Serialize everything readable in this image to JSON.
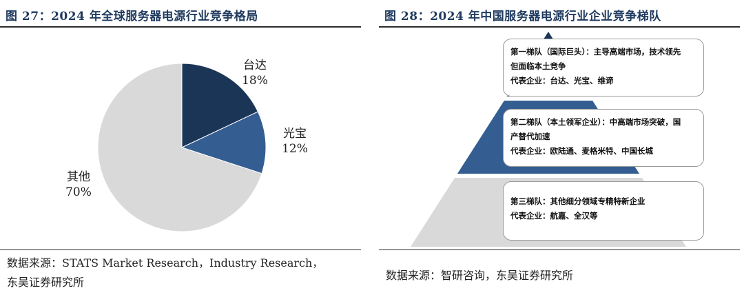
{
  "left": {
    "title": "图 27：2024 年全球服务器电源行业竞争格局",
    "source_lines": [
      "数据来源：STATS Market Research，Industry Research，",
      "东吴证券研究所"
    ]
  },
  "right": {
    "title": "图 28：2024 年中国服务器电源行业企业竞争梯队",
    "source": "数据来源：智研咨询，东吴证券研究所",
    "tiers": [
      {
        "line1": "第一梯队（国际巨头）：主导高端市场，技术领先",
        "line2": "但面临本土竞争",
        "line3": "代表企业：台达、光宝、维谛"
      },
      {
        "line1": "第二梯队（本土领军企业）：中高端市场突破，国",
        "line2": "产替代加速",
        "line3": "代表企业：欧陆通、麦格米特、中国长城"
      },
      {
        "line1": "第三梯队：其他细分领域专精特新企业",
        "line2": "代表企业：航嘉、全汉等"
      }
    ],
    "tier_colors": [
      "#1b3557",
      "#345e92",
      "#d9d9d9"
    ]
  },
  "chart_data": {
    "type": "pie",
    "title": "2024 年全球服务器电源行业竞争格局",
    "categories": [
      "台达",
      "光宝",
      "其他"
    ],
    "values": [
      18,
      12,
      70
    ],
    "labels": [
      "18%",
      "12%",
      "70%"
    ],
    "colors": [
      "#1b3557",
      "#345e92",
      "#d9d9d9"
    ]
  }
}
